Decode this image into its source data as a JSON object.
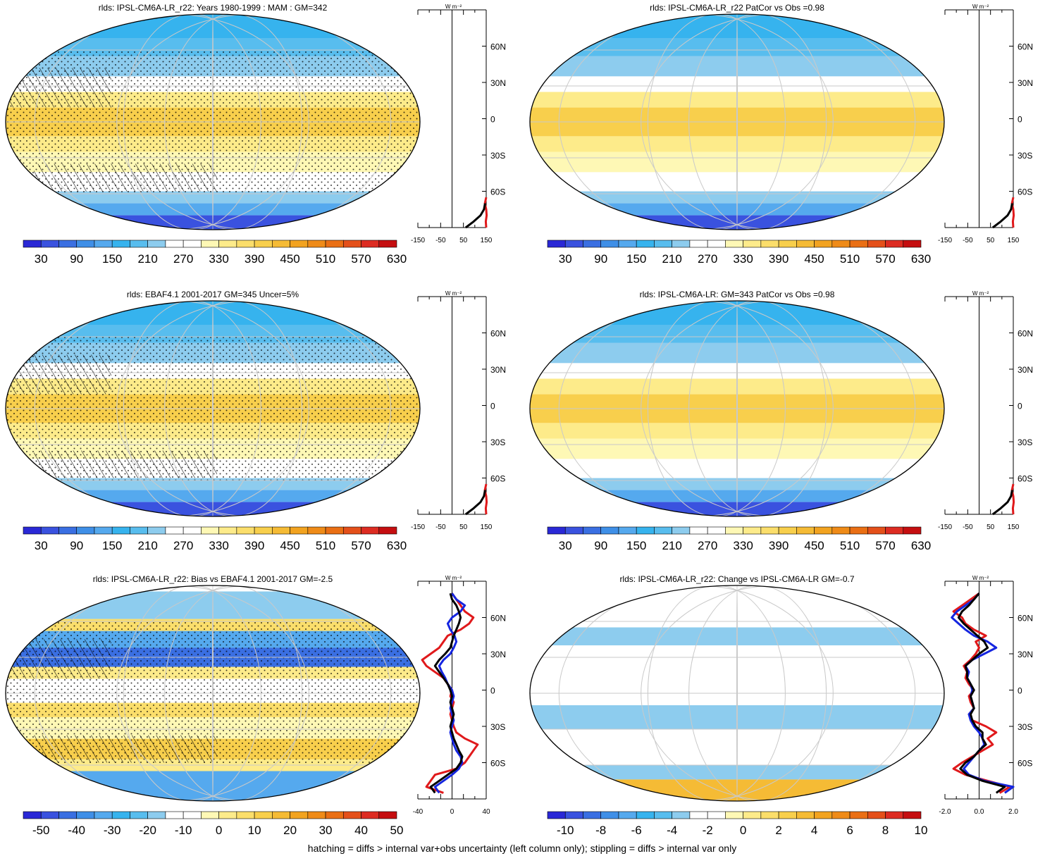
{
  "footer": "hatching = diffs > internal var+obs uncertainty (left column only); stippling = diffs > internal var only",
  "lat_labels": [
    "60N",
    "30N",
    "0",
    "30S",
    "60S"
  ],
  "unit_label": "W m⁻²",
  "colors": {
    "abs": [
      "#2a28d6",
      "#3a52df",
      "#3a6fe2",
      "#3f8fe7",
      "#55a9ee",
      "#36b3ee",
      "#58bdee",
      "#8dccee",
      "#ffffff",
      "#ffffff",
      "#fef8b5",
      "#fdeb8a",
      "#fbde6b",
      "#f8cf4c",
      "#f5bb35",
      "#f2a320",
      "#ef8b18",
      "#ea6f14",
      "#e4501a",
      "#dd2c22",
      "#c50e10"
    ],
    "diff": [
      "#2a28d6",
      "#3a52df",
      "#3a6fe2",
      "#3f8fe7",
      "#55a9ee",
      "#36b3ee",
      "#58bdee",
      "#8dccee",
      "#ffffff",
      "#ffffff",
      "#fef8b5",
      "#fdeb8a",
      "#fbde6b",
      "#f8cf4c",
      "#f5bb35",
      "#f2a320",
      "#ef8b18",
      "#ea6f14",
      "#e4501a",
      "#dd2c22",
      "#c50e10"
    ]
  },
  "chart_data": [
    {
      "type": "heatmap",
      "title": "rlds: IPSL-CM6A-LR_r22: Years 1980-1999 : MAM : GM=342",
      "colorbar_labels": [
        "30",
        "90",
        "150",
        "210",
        "270",
        "330",
        "390",
        "450",
        "510",
        "570",
        "630"
      ],
      "profile": {
        "xticks": [
          "-150",
          "-50",
          "50",
          "150"
        ],
        "xlim": [
          -150,
          150
        ],
        "series": [
          {
            "color": "#e0191b",
            "lat": [
              -90,
              -85,
              -80,
              -75,
              -70,
              -65
            ],
            "values": [
              150,
              148,
              152,
              150,
              144,
              150
            ]
          },
          {
            "color": "#000000",
            "lat": [
              -90,
              -85,
              -80,
              -75,
              -70
            ],
            "values": [
              60,
              95,
              125,
              140,
              145
            ]
          }
        ]
      }
    },
    {
      "type": "heatmap",
      "title": "rlds: IPSL-CM6A-LR_r22 PatCor vs Obs =0.98",
      "colorbar_labels": [
        "30",
        "90",
        "150",
        "210",
        "270",
        "330",
        "390",
        "450",
        "510",
        "570",
        "630"
      ],
      "profile": {
        "xticks": [
          "-150",
          "-50",
          "50",
          "150"
        ],
        "xlim": [
          -150,
          150
        ],
        "series": [
          {
            "color": "#e0191b",
            "lat": [
              -90,
              -85,
              -80,
              -75,
              -70,
              -65
            ],
            "values": [
              150,
              148,
              152,
              150,
              144,
              150
            ]
          },
          {
            "color": "#000000",
            "lat": [
              -90,
              -85,
              -80,
              -75,
              -70
            ],
            "values": [
              60,
              95,
              125,
              140,
              145
            ]
          }
        ]
      }
    },
    {
      "type": "heatmap",
      "title": "rlds: EBAF4.1 2001-2017 GM=345 Uncer=5%",
      "colorbar_labels": [
        "30",
        "90",
        "150",
        "210",
        "270",
        "330",
        "390",
        "450",
        "510",
        "570",
        "630"
      ],
      "profile": {
        "xticks": [
          "-150",
          "-50",
          "50",
          "150"
        ],
        "xlim": [
          -150,
          150
        ],
        "series": [
          {
            "color": "#e0191b",
            "lat": [
              -90,
              -85,
              -80,
              -75,
              -70,
              -65
            ],
            "values": [
              150,
              148,
              152,
              150,
              144,
              150
            ]
          },
          {
            "color": "#000000",
            "lat": [
              -90,
              -85,
              -80,
              -75,
              -70
            ],
            "values": [
              60,
              95,
              125,
              140,
              145
            ]
          }
        ]
      }
    },
    {
      "type": "heatmap",
      "title": "rlds: IPSL-CM6A-LR: GM=343 PatCor vs Obs =0.98",
      "colorbar_labels": [
        "30",
        "90",
        "150",
        "210",
        "270",
        "330",
        "390",
        "450",
        "510",
        "570",
        "630"
      ],
      "profile": {
        "xticks": [
          "-150",
          "-50",
          "50",
          "150"
        ],
        "xlim": [
          -150,
          150
        ],
        "series": [
          {
            "color": "#e0191b",
            "lat": [
              -90,
              -85,
              -80,
              -75,
              -70,
              -65
            ],
            "values": [
              150,
              148,
              152,
              150,
              144,
              150
            ]
          },
          {
            "color": "#000000",
            "lat": [
              -90,
              -85,
              -80,
              -75,
              -70
            ],
            "values": [
              60,
              95,
              125,
              140,
              145
            ]
          }
        ]
      }
    },
    {
      "type": "heatmap",
      "title": "rlds: IPSL-CM6A-LR_r22: Bias vs EBAF4.1 2001-2017 GM=-2.5",
      "colorbar_labels": [
        "-50",
        "-40",
        "-30",
        "-20",
        "-10",
        "0",
        "10",
        "20",
        "30",
        "40",
        "50"
      ],
      "profile": {
        "xticks": [
          "-40",
          "0",
          "40"
        ],
        "xlim": [
          -40,
          40
        ],
        "series": [
          {
            "color": "#e0191b",
            "lat": [
              -85,
              -80,
              -75,
              -70,
              -65,
              -60,
              -55,
              -50,
              -45,
              -40,
              -35,
              -30,
              -25,
              -20,
              -15,
              -10,
              -5,
              0,
              5,
              10,
              15,
              20,
              25,
              30,
              35,
              40,
              45,
              50,
              55,
              60,
              65,
              70,
              75,
              80
            ],
            "values": [
              -10,
              -30,
              -25,
              -20,
              5,
              15,
              20,
              25,
              30,
              15,
              5,
              2,
              0,
              -2,
              0,
              2,
              -2,
              0,
              -5,
              -10,
              -20,
              -30,
              -35,
              -25,
              -15,
              -10,
              -5,
              10,
              20,
              25,
              15,
              10,
              5,
              0
            ]
          },
          {
            "color": "#1525e0",
            "lat": [
              -85,
              -80,
              -75,
              -70,
              -65,
              -60,
              -55,
              -50,
              -45,
              -40,
              -35,
              -30,
              -25,
              -20,
              -15,
              -10,
              -5,
              0,
              5,
              10,
              15,
              20,
              25,
              30,
              35,
              40,
              45,
              50,
              55,
              60,
              65,
              70,
              75,
              80
            ],
            "values": [
              -15,
              -20,
              -10,
              0,
              8,
              12,
              10,
              5,
              2,
              0,
              -2,
              0,
              2,
              0,
              -2,
              0,
              2,
              0,
              -5,
              -8,
              -12,
              -15,
              -10,
              -2,
              2,
              5,
              3,
              -2,
              -5,
              0,
              10,
              15,
              5,
              0
            ]
          },
          {
            "color": "#000000",
            "lat": [
              -85,
              -80,
              -75,
              -70,
              -65,
              -60,
              -55,
              -50,
              -45,
              -40,
              -35,
              -30,
              -25,
              -20,
              -15,
              -10,
              -5,
              0,
              5,
              10,
              15,
              20,
              25,
              30,
              35,
              40,
              45,
              50,
              55,
              60,
              65,
              70,
              75,
              80
            ],
            "values": [
              -20,
              -25,
              -15,
              -5,
              5,
              10,
              12,
              8,
              5,
              2,
              0,
              -2,
              0,
              2,
              0,
              -2,
              0,
              -2,
              -5,
              -10,
              -15,
              -20,
              -15,
              -8,
              -2,
              0,
              2,
              5,
              8,
              10,
              8,
              5,
              0,
              -2
            ]
          }
        ]
      }
    },
    {
      "type": "heatmap",
      "title": "rlds: IPSL-CM6A-LR_r22: Change vs IPSL-CM6A-LR GM=-0.7",
      "colorbar_labels": [
        "-10",
        "-8",
        "-6",
        "-4",
        "-2",
        "0",
        "2",
        "4",
        "6",
        "8",
        "10"
      ],
      "profile": {
        "xticks": [
          "-2.0",
          "0.0",
          "2.0"
        ],
        "xlim": [
          -2.0,
          2.0
        ],
        "series": [
          {
            "color": "#e0191b",
            "lat": [
              -85,
              -80,
              -75,
              -70,
              -65,
              -60,
              -55,
              -50,
              -45,
              -40,
              -35,
              -30,
              -25,
              -20,
              -15,
              -10,
              -5,
              0,
              5,
              10,
              15,
              20,
              25,
              30,
              35,
              40,
              45,
              50,
              55,
              60,
              65,
              70,
              75,
              80
            ],
            "values": [
              1.2,
              1.8,
              0.5,
              -0.8,
              -1.5,
              -1.0,
              -0.4,
              0.2,
              0.8,
              0.5,
              1.0,
              0.4,
              -0.4,
              -0.6,
              -0.3,
              -0.5,
              -0.6,
              -0.3,
              -0.6,
              -0.8,
              -0.7,
              -0.9,
              -0.5,
              -0.2,
              0.0,
              -0.2,
              0.4,
              -0.3,
              -0.8,
              -1.0,
              -1.5,
              -1.0,
              -0.5,
              0.0
            ]
          },
          {
            "color": "#1525e0",
            "lat": [
              -85,
              -80,
              -75,
              -70,
              -65,
              -60,
              -55,
              -50,
              -45,
              -40,
              -35,
              -30,
              -25,
              -20,
              -15,
              -10,
              -5,
              0,
              5,
              10,
              15,
              20,
              25,
              30,
              35,
              40,
              45,
              50,
              55,
              60,
              65,
              70,
              75,
              80
            ],
            "values": [
              1.5,
              2.0,
              0.3,
              -0.6,
              -0.9,
              -0.6,
              -0.3,
              0.0,
              0.3,
              0.2,
              0.0,
              -0.3,
              -0.5,
              -0.6,
              -0.3,
              -0.4,
              -0.5,
              -0.4,
              -0.5,
              -0.7,
              -0.6,
              -0.8,
              -0.4,
              0.3,
              1.0,
              0.5,
              -0.3,
              -0.8,
              -1.2,
              -1.6,
              -1.3,
              -0.8,
              -0.3,
              0.0
            ]
          },
          {
            "color": "#000000",
            "lat": [
              -85,
              -80,
              -75,
              -70,
              -65,
              -60,
              -55,
              -50,
              -45,
              -40,
              -35,
              -30,
              -25,
              -20,
              -15,
              -10,
              -5,
              0,
              5,
              10,
              15,
              20,
              25,
              30,
              35,
              40,
              45,
              50,
              55,
              60,
              65,
              70,
              75,
              80
            ],
            "values": [
              1.0,
              1.5,
              0.2,
              -0.7,
              -1.1,
              -0.8,
              -0.3,
              0.0,
              0.4,
              0.2,
              0.2,
              -0.2,
              -0.4,
              -0.5,
              -0.3,
              -0.4,
              -0.5,
              -0.3,
              -0.5,
              -0.7,
              -0.7,
              -0.8,
              -0.4,
              0.0,
              0.5,
              0.3,
              -0.1,
              -0.5,
              -0.9,
              -1.2,
              -1.0,
              -0.6,
              -0.3,
              0.0
            ]
          }
        ]
      }
    }
  ]
}
